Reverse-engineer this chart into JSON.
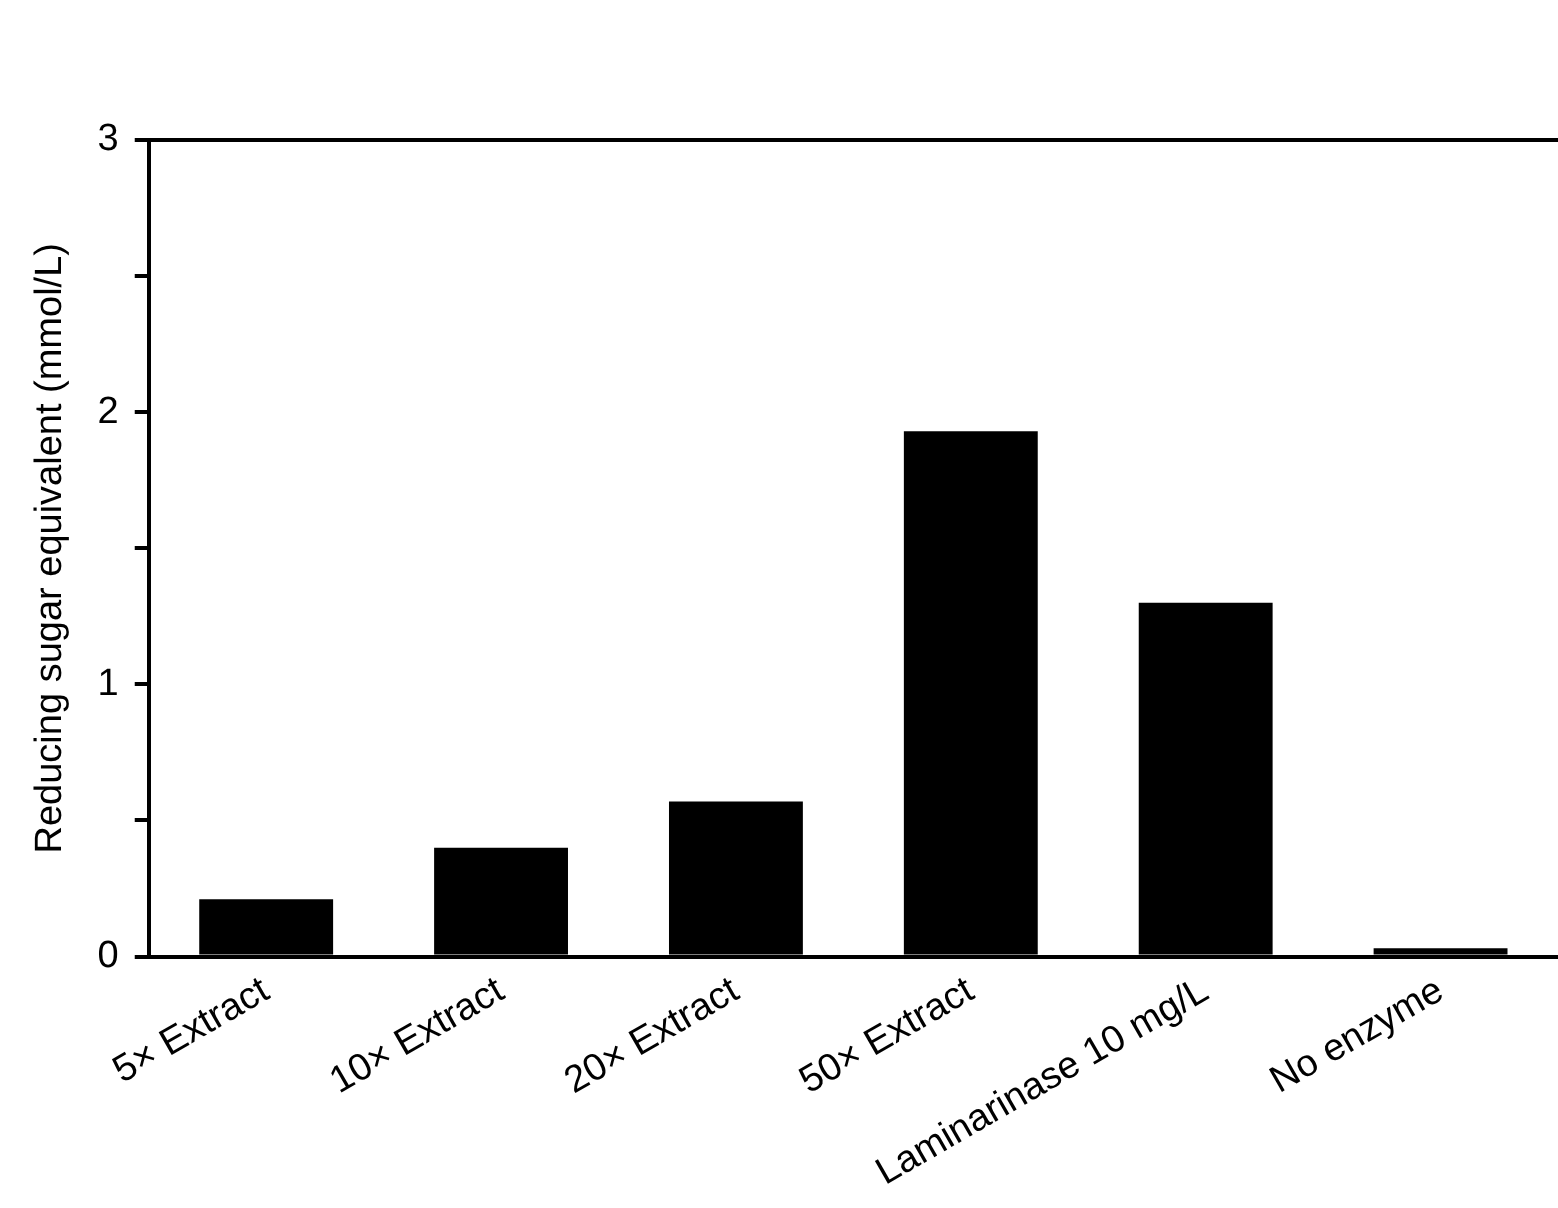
{
  "chart_data": {
    "type": "bar",
    "ylabel": "Reducing sugar equivalent (mmol/L)",
    "categories": [
      "5× Extract",
      "10× Extract",
      "20× Extract",
      "50× Extract",
      "Laminarinase 10 mg/L",
      "No enzyme"
    ],
    "values": [
      0.21,
      0.4,
      0.57,
      1.93,
      1.3,
      0.03
    ],
    "color": "#000000",
    "ylim": [
      0,
      3
    ],
    "yticks": [
      0,
      {
        "value": 0.5,
        "label": null
      },
      1,
      {
        "value": 1.5,
        "label": null
      },
      2,
      {
        "value": 2.5,
        "label": null
      },
      3
    ],
    "grid": false,
    "legend": false
  }
}
